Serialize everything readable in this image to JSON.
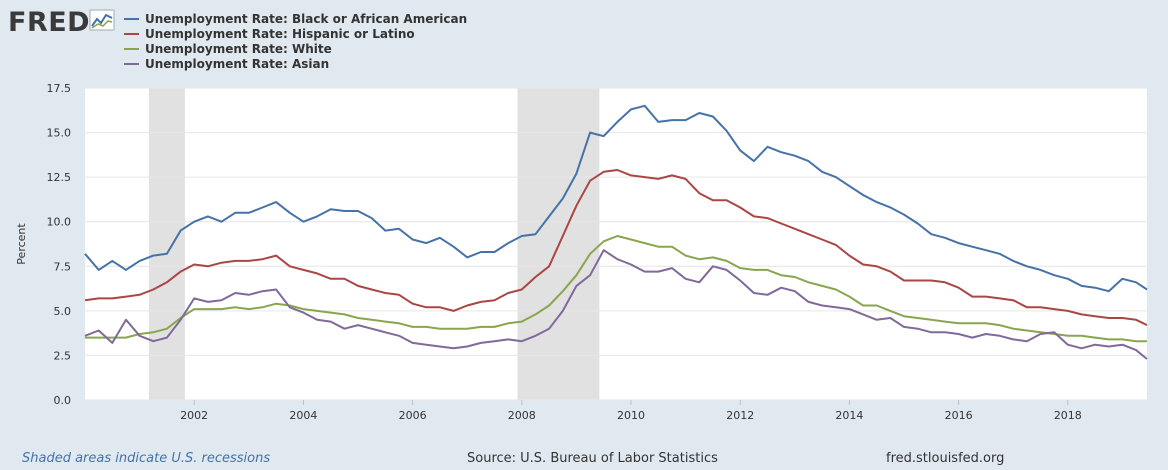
{
  "logo": {
    "text": "FRED",
    "icon": "line-chart-icon"
  },
  "colors": {
    "background": "#e1e9f0",
    "plot_bg": "#ffffff",
    "grid": "#e6e6e6",
    "recession": "#e1e1e1"
  },
  "footer": {
    "note": "Shaded areas indicate U.S. recessions",
    "source": "Source: U.S. Bureau of Labor Statistics",
    "url": "fred.stlouisfed.org"
  },
  "chart_data": {
    "type": "line",
    "title": "",
    "xlabel": "",
    "ylabel": "Percent",
    "ylim": [
      0,
      17.5
    ],
    "yticks": [
      0.0,
      2.5,
      5.0,
      7.5,
      10.0,
      12.5,
      15.0,
      17.5
    ],
    "ytick_labels": [
      "0.0",
      "2.5",
      "5.0",
      "7.5",
      "10.0",
      "12.5",
      "15.0",
      "17.5"
    ],
    "xlim": [
      2000.0,
      2019.45
    ],
    "xticks": [
      2002,
      2004,
      2006,
      2008,
      2010,
      2012,
      2014,
      2016,
      2018
    ],
    "xtick_labels": [
      "2002",
      "2004",
      "2006",
      "2008",
      "2010",
      "2012",
      "2014",
      "2016",
      "2018"
    ],
    "grid": true,
    "legend_position": "top-left",
    "recessions": [
      [
        2001.17,
        2001.83
      ],
      [
        2007.92,
        2009.42
      ]
    ],
    "series": [
      {
        "name": "Unemployment Rate: Black or African American",
        "color": "#4572a7",
        "x": [
          2000.0,
          2000.25,
          2000.5,
          2000.75,
          2001.0,
          2001.25,
          2001.5,
          2001.75,
          2002.0,
          2002.25,
          2002.5,
          2002.75,
          2003.0,
          2003.25,
          2003.5,
          2003.75,
          2004.0,
          2004.25,
          2004.5,
          2004.75,
          2005.0,
          2005.25,
          2005.5,
          2005.75,
          2006.0,
          2006.25,
          2006.5,
          2006.75,
          2007.0,
          2007.25,
          2007.5,
          2007.75,
          2008.0,
          2008.25,
          2008.5,
          2008.75,
          2009.0,
          2009.25,
          2009.5,
          2009.75,
          2010.0,
          2010.25,
          2010.5,
          2010.75,
          2011.0,
          2011.25,
          2011.5,
          2011.75,
          2012.0,
          2012.25,
          2012.5,
          2012.75,
          2013.0,
          2013.25,
          2013.5,
          2013.75,
          2014.0,
          2014.25,
          2014.5,
          2014.75,
          2015.0,
          2015.25,
          2015.5,
          2015.75,
          2016.0,
          2016.25,
          2016.5,
          2016.75,
          2017.0,
          2017.25,
          2017.5,
          2017.75,
          2018.0,
          2018.25,
          2018.5,
          2018.75,
          2019.0,
          2019.25,
          2019.45
        ],
        "values": [
          8.2,
          7.3,
          7.8,
          7.3,
          7.8,
          8.1,
          8.2,
          9.5,
          10.0,
          10.3,
          10.0,
          10.5,
          10.5,
          10.8,
          11.1,
          10.5,
          10.0,
          10.3,
          10.7,
          10.6,
          10.6,
          10.2,
          9.5,
          9.6,
          9.0,
          8.8,
          9.1,
          8.6,
          8.0,
          8.3,
          8.3,
          8.8,
          9.2,
          9.3,
          10.3,
          11.3,
          12.7,
          15.0,
          14.8,
          15.6,
          16.3,
          16.5,
          15.6,
          15.7,
          15.7,
          16.1,
          15.9,
          15.1,
          14.0,
          13.4,
          14.2,
          13.9,
          13.7,
          13.4,
          12.8,
          12.5,
          12.0,
          11.5,
          11.1,
          10.8,
          10.4,
          9.9,
          9.3,
          9.1,
          8.8,
          8.6,
          8.4,
          8.2,
          7.8,
          7.5,
          7.3,
          7.0,
          6.8,
          6.4,
          6.3,
          6.1,
          6.8,
          6.6,
          6.2
        ]
      },
      {
        "name": "Unemployment Rate: Hispanic or Latino",
        "color": "#aa4643",
        "x": [
          2000.0,
          2000.25,
          2000.5,
          2000.75,
          2001.0,
          2001.25,
          2001.5,
          2001.75,
          2002.0,
          2002.25,
          2002.5,
          2002.75,
          2003.0,
          2003.25,
          2003.5,
          2003.75,
          2004.0,
          2004.25,
          2004.5,
          2004.75,
          2005.0,
          2005.25,
          2005.5,
          2005.75,
          2006.0,
          2006.25,
          2006.5,
          2006.75,
          2007.0,
          2007.25,
          2007.5,
          2007.75,
          2008.0,
          2008.25,
          2008.5,
          2008.75,
          2009.0,
          2009.25,
          2009.5,
          2009.75,
          2010.0,
          2010.25,
          2010.5,
          2010.75,
          2011.0,
          2011.25,
          2011.5,
          2011.75,
          2012.0,
          2012.25,
          2012.5,
          2012.75,
          2013.0,
          2013.25,
          2013.5,
          2013.75,
          2014.0,
          2014.25,
          2014.5,
          2014.75,
          2015.0,
          2015.25,
          2015.5,
          2015.75,
          2016.0,
          2016.25,
          2016.5,
          2016.75,
          2017.0,
          2017.25,
          2017.5,
          2017.75,
          2018.0,
          2018.25,
          2018.5,
          2018.75,
          2019.0,
          2019.25,
          2019.45
        ],
        "values": [
          5.6,
          5.7,
          5.7,
          5.8,
          5.9,
          6.2,
          6.6,
          7.2,
          7.6,
          7.5,
          7.7,
          7.8,
          7.8,
          7.9,
          8.1,
          7.5,
          7.3,
          7.1,
          6.8,
          6.8,
          6.4,
          6.2,
          6.0,
          5.9,
          5.4,
          5.2,
          5.2,
          5.0,
          5.3,
          5.5,
          5.6,
          6.0,
          6.2,
          6.9,
          7.5,
          9.2,
          10.9,
          12.3,
          12.8,
          12.9,
          12.6,
          12.5,
          12.4,
          12.6,
          12.4,
          11.6,
          11.2,
          11.2,
          10.8,
          10.3,
          10.2,
          9.9,
          9.6,
          9.3,
          9.0,
          8.7,
          8.1,
          7.6,
          7.5,
          7.2,
          6.7,
          6.7,
          6.7,
          6.6,
          6.3,
          5.8,
          5.8,
          5.7,
          5.6,
          5.2,
          5.2,
          5.1,
          5.0,
          4.8,
          4.7,
          4.6,
          4.6,
          4.5,
          4.2
        ]
      },
      {
        "name": "Unemployment Rate: White",
        "color": "#89a54e",
        "x": [
          2000.0,
          2000.25,
          2000.5,
          2000.75,
          2001.0,
          2001.25,
          2001.5,
          2001.75,
          2002.0,
          2002.25,
          2002.5,
          2002.75,
          2003.0,
          2003.25,
          2003.5,
          2003.75,
          2004.0,
          2004.25,
          2004.5,
          2004.75,
          2005.0,
          2005.25,
          2005.5,
          2005.75,
          2006.0,
          2006.25,
          2006.5,
          2006.75,
          2007.0,
          2007.25,
          2007.5,
          2007.75,
          2008.0,
          2008.25,
          2008.5,
          2008.75,
          2009.0,
          2009.25,
          2009.5,
          2009.75,
          2010.0,
          2010.25,
          2010.5,
          2010.75,
          2011.0,
          2011.25,
          2011.5,
          2011.75,
          2012.0,
          2012.25,
          2012.5,
          2012.75,
          2013.0,
          2013.25,
          2013.5,
          2013.75,
          2014.0,
          2014.25,
          2014.5,
          2014.75,
          2015.0,
          2015.25,
          2015.5,
          2015.75,
          2016.0,
          2016.25,
          2016.5,
          2016.75,
          2017.0,
          2017.25,
          2017.5,
          2017.75,
          2018.0,
          2018.25,
          2018.5,
          2018.75,
          2019.0,
          2019.25,
          2019.45
        ],
        "values": [
          3.5,
          3.5,
          3.5,
          3.5,
          3.7,
          3.8,
          4.0,
          4.6,
          5.1,
          5.1,
          5.1,
          5.2,
          5.1,
          5.2,
          5.4,
          5.3,
          5.1,
          5.0,
          4.9,
          4.8,
          4.6,
          4.5,
          4.4,
          4.3,
          4.1,
          4.1,
          4.0,
          4.0,
          4.0,
          4.1,
          4.1,
          4.3,
          4.4,
          4.8,
          5.3,
          6.1,
          7.0,
          8.2,
          8.9,
          9.2,
          9.0,
          8.8,
          8.6,
          8.6,
          8.1,
          7.9,
          8.0,
          7.8,
          7.4,
          7.3,
          7.3,
          7.0,
          6.9,
          6.6,
          6.4,
          6.2,
          5.8,
          5.3,
          5.3,
          5.0,
          4.7,
          4.6,
          4.5,
          4.4,
          4.3,
          4.3,
          4.3,
          4.2,
          4.0,
          3.9,
          3.8,
          3.7,
          3.6,
          3.6,
          3.5,
          3.4,
          3.4,
          3.3,
          3.3
        ]
      },
      {
        "name": "Unemployment Rate: Asian",
        "color": "#80699b",
        "x": [
          2000.0,
          2000.25,
          2000.5,
          2000.75,
          2001.0,
          2001.25,
          2001.5,
          2001.75,
          2002.0,
          2002.25,
          2002.5,
          2002.75,
          2003.0,
          2003.25,
          2003.5,
          2003.75,
          2004.0,
          2004.25,
          2004.5,
          2004.75,
          2005.0,
          2005.25,
          2005.5,
          2005.75,
          2006.0,
          2006.25,
          2006.5,
          2006.75,
          2007.0,
          2007.25,
          2007.5,
          2007.75,
          2008.0,
          2008.25,
          2008.5,
          2008.75,
          2009.0,
          2009.25,
          2009.5,
          2009.75,
          2010.0,
          2010.25,
          2010.5,
          2010.75,
          2011.0,
          2011.25,
          2011.5,
          2011.75,
          2012.0,
          2012.25,
          2012.5,
          2012.75,
          2013.0,
          2013.25,
          2013.5,
          2013.75,
          2014.0,
          2014.25,
          2014.5,
          2014.75,
          2015.0,
          2015.25,
          2015.5,
          2015.75,
          2016.0,
          2016.25,
          2016.5,
          2016.75,
          2017.0,
          2017.25,
          2017.5,
          2017.75,
          2018.0,
          2018.25,
          2018.5,
          2018.75,
          2019.0,
          2019.25,
          2019.45
        ],
        "values": [
          3.6,
          3.9,
          3.2,
          4.5,
          3.6,
          3.3,
          3.5,
          4.5,
          5.7,
          5.5,
          5.6,
          6.0,
          5.9,
          6.1,
          6.2,
          5.2,
          4.9,
          4.5,
          4.4,
          4.0,
          4.2,
          4.0,
          3.8,
          3.6,
          3.2,
          3.1,
          3.0,
          2.9,
          3.0,
          3.2,
          3.3,
          3.4,
          3.3,
          3.6,
          4.0,
          5.0,
          6.4,
          7.0,
          8.4,
          7.9,
          7.6,
          7.2,
          7.2,
          7.4,
          6.8,
          6.6,
          7.5,
          7.3,
          6.7,
          6.0,
          5.9,
          6.3,
          6.1,
          5.5,
          5.3,
          5.2,
          5.1,
          4.8,
          4.5,
          4.6,
          4.1,
          4.0,
          3.8,
          3.8,
          3.7,
          3.5,
          3.7,
          3.6,
          3.4,
          3.3,
          3.7,
          3.8,
          3.1,
          2.9,
          3.1,
          3.0,
          3.1,
          2.8,
          2.3
        ]
      }
    ]
  }
}
